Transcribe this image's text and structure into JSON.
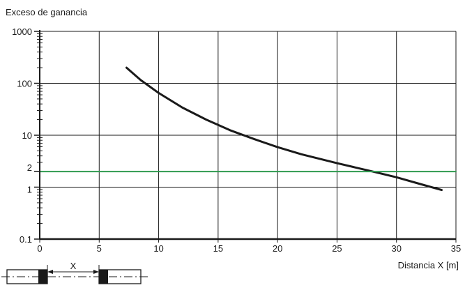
{
  "chart_data": {
    "type": "line",
    "title": "",
    "ylabel": "Exceso de ganancia",
    "xlabel": "Distancia X [m]",
    "xlim": [
      0,
      35
    ],
    "ylim": [
      0.1,
      1000
    ],
    "y_scale": "log",
    "grid": true,
    "x_ticks": [
      {
        "value": 0,
        "label": "0"
      },
      {
        "value": 5,
        "label": "5"
      },
      {
        "value": 10,
        "label": "10"
      },
      {
        "value": 15,
        "label": "15"
      },
      {
        "value": 20,
        "label": "20"
      },
      {
        "value": 25,
        "label": "25"
      },
      {
        "value": 30,
        "label": "30"
      },
      {
        "value": 35,
        "label": "35"
      }
    ],
    "y_ticks": [
      {
        "value": 0.1,
        "label": "0.1"
      },
      {
        "value": 1,
        "label": "1"
      },
      {
        "value": 2,
        "label": "2"
      },
      {
        "value": 10,
        "label": "10"
      },
      {
        "value": 100,
        "label": "100"
      },
      {
        "value": 1000,
        "label": "1000"
      }
    ],
    "series": [
      {
        "color": "#1a1a1a",
        "x": [
          7.3,
          8.5,
          10,
          12,
          14,
          16,
          18,
          20,
          22,
          25,
          28,
          30,
          32,
          33.8
        ],
        "y": [
          200,
          115,
          65,
          34,
          20,
          12.5,
          8.5,
          5.9,
          4.3,
          2.9,
          2.0,
          1.55,
          1.15,
          0.88
        ]
      },
      {
        "color": "#2e9a4e",
        "x": [
          0,
          35
        ],
        "y": [
          2,
          2
        ]
      }
    ]
  },
  "diagram": {
    "distance_label": "X"
  }
}
